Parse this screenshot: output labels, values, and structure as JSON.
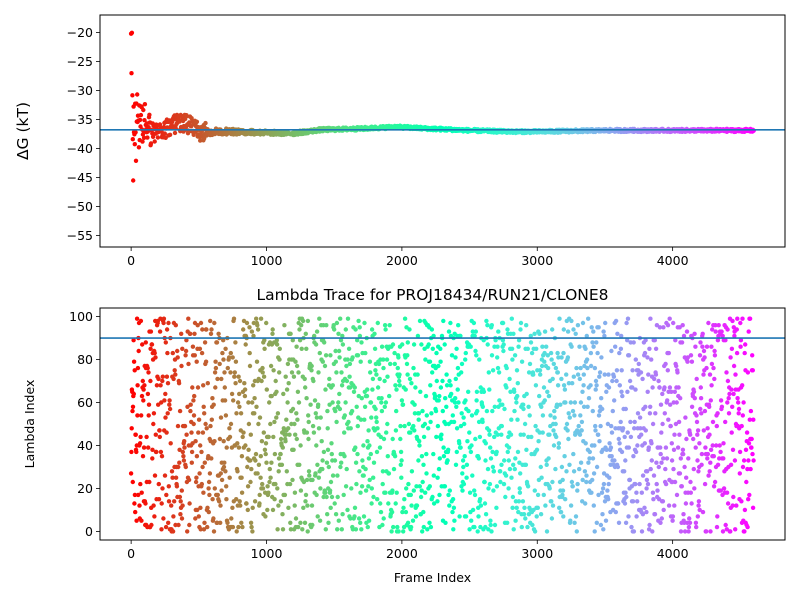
{
  "chart_data": [
    {
      "type": "scatter",
      "title": "",
      "xlabel": "",
      "ylabel": "ΔG (kT)",
      "xlim": [
        -230,
        4830
      ],
      "ylim": [
        -57,
        -17
      ],
      "xticks": [
        0,
        1000,
        2000,
        3000,
        4000
      ],
      "yticks": [
        -55,
        -50,
        -45,
        -40,
        -35,
        -30,
        -25,
        -20
      ],
      "reference_line": -36.8,
      "reference_line_color": "#1f77b4",
      "colormap": "rainbow (red at frame 0 → violet at last frame)",
      "frames": 4600,
      "series_summary": {
        "x": [
          0,
          50,
          100,
          150,
          200,
          300,
          400,
          500,
          700,
          1000,
          1200,
          1400,
          1700,
          1950,
          2200,
          2500,
          2800,
          3000,
          3500,
          4000,
          4600
        ],
        "y": [
          -38,
          -34,
          -35,
          -37,
          -37.5,
          -36,
          -35.5,
          -37.2,
          -37.1,
          -37.3,
          -37.4,
          -36.8,
          -36.6,
          -36.3,
          -36.6,
          -36.9,
          -37.1,
          -37.1,
          -36.9,
          -36.9,
          -36.9
        ]
      }
    },
    {
      "type": "scatter",
      "title": "Lambda Trace for PROJ18434/RUN21/CLONE8",
      "xlabel": "Frame Index",
      "ylabel": "Lambda Index",
      "xlim": [
        -230,
        4830
      ],
      "ylim": [
        -4,
        104
      ],
      "xticks": [
        0,
        1000,
        2000,
        3000,
        4000
      ],
      "yticks": [
        0,
        20,
        40,
        60,
        80,
        100
      ],
      "reference_line": 90,
      "reference_line_color": "#1f77b4",
      "colormap": "rainbow (red at frame 0 → violet at last frame)",
      "frames": 4600,
      "lambda_range": [
        0,
        99
      ]
    }
  ],
  "colors": {
    "axis": "#000000",
    "reference": "#1f77b4"
  }
}
